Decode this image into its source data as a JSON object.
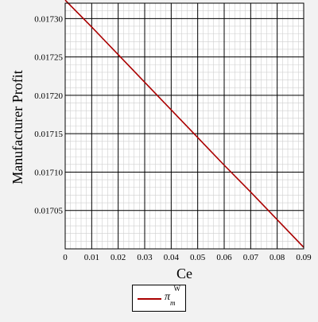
{
  "chart_data": {
    "type": "line",
    "xlabel": "Ce",
    "ylabel": "Manufacturer Profit",
    "xlim": [
      0,
      0.09
    ],
    "ylim": [
      0.017,
      0.01732
    ],
    "x_ticks": [
      "0",
      "0.01",
      "0.02",
      "0.03",
      "0.04",
      "0.05",
      "0.06",
      "0.07",
      "0.08",
      "0.09"
    ],
    "y_ticks": [
      "0.01705",
      "0.01710",
      "0.01715",
      "0.01720",
      "0.01725",
      "0.01730"
    ],
    "grid": true,
    "legend_position": "bottom-center",
    "series": [
      {
        "name": "π_m^W",
        "color": "#aa0000",
        "x": [
          0,
          0.01,
          0.02,
          0.03,
          0.04,
          0.05,
          0.06,
          0.07,
          0.08,
          0.09
        ],
        "y": [
          0.017324,
          0.017289,
          0.017253,
          0.017217,
          0.017181,
          0.017145,
          0.017109,
          0.017074,
          0.017038,
          0.017002
        ]
      }
    ]
  },
  "legend": {
    "symbol": "π",
    "subscript": "m",
    "superscript": "W"
  }
}
